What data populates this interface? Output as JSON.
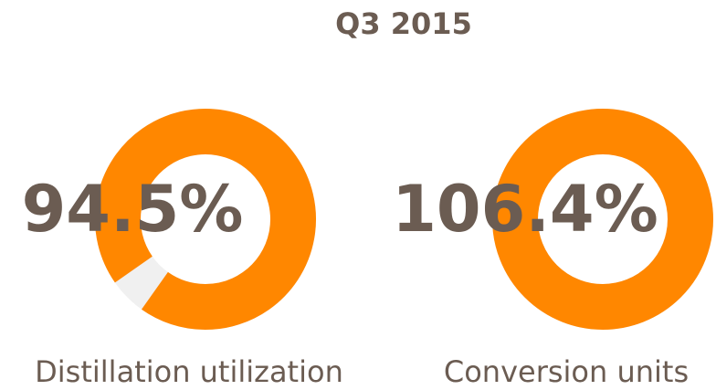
{
  "title": "Q3 2015",
  "chart_data": [
    {
      "type": "donut",
      "title": "Distillation utilization",
      "values": [
        94.5
      ],
      "value_labels": [
        "94.5%"
      ],
      "color": "#ff8700",
      "track_color": "#f0f0f0"
    },
    {
      "type": "donut",
      "title": "Conversion units",
      "values": [
        106.4
      ],
      "value_labels": [
        "106.4%"
      ],
      "color": "#ff8700",
      "track_color": "#f0f0f0"
    }
  ]
}
